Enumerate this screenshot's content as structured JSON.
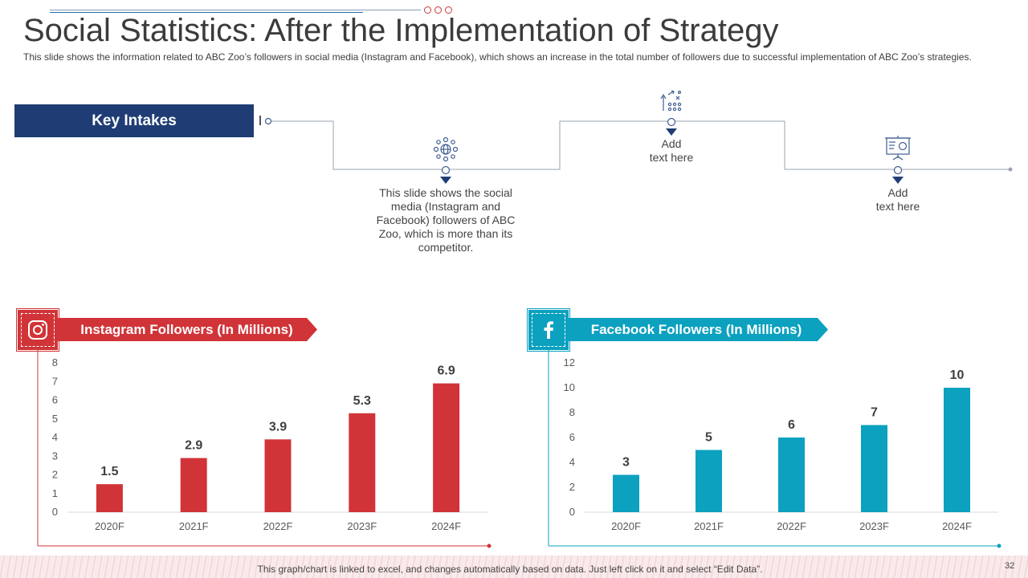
{
  "header": {
    "title": "Social Statistics: After the Implementation of Strategy",
    "subtitle": "This slide shows the information related to ABC Zoo’s followers  in social media (Instagram and Facebook), which shows an increase in the total number of followers due to successful implementation of ABC Zoo’s strategies."
  },
  "key_intakes": {
    "label": "Key Intakes",
    "point1": "This slide shows the social media (Instagram and Facebook) followers of ABC Zoo, which is more than its competitor.",
    "point2": "Add\ntext here",
    "point3": "Add\ntext here"
  },
  "instagram": {
    "banner": "Instagram Followers (In Millions)"
  },
  "facebook": {
    "banner": "Facebook Followers (In Millions)"
  },
  "colors": {
    "navy": "#1f3d74",
    "red": "#d13438",
    "teal": "#0ba1bf"
  },
  "footer": {
    "note": "This graph/chart is linked to excel, and changes automatically based on data. Just left click on it and select “Edit Data”.",
    "page": "32"
  },
  "chart_data": [
    {
      "type": "bar",
      "title": "Instagram Followers (In Millions)",
      "categories": [
        "2020F",
        "2021F",
        "2022F",
        "2023F",
        "2024F"
      ],
      "values": [
        1.5,
        2.9,
        3.9,
        5.3,
        6.9
      ],
      "value_labels": [
        "1.5",
        "2.9",
        "3.9",
        "5.3",
        "6.9"
      ],
      "ylim": [
        0,
        8
      ],
      "yticks": [
        "0",
        "1",
        "2",
        "3",
        "4",
        "5",
        "6",
        "7",
        "8"
      ],
      "color": "#d13438"
    },
    {
      "type": "bar",
      "title": "Facebook Followers (In Millions)",
      "categories": [
        "2020F",
        "2021F",
        "2022F",
        "2023F",
        "2024F"
      ],
      "values": [
        3,
        5,
        6,
        7,
        10
      ],
      "value_labels": [
        "3",
        "5",
        "6",
        "7",
        "10"
      ],
      "ylim": [
        0,
        12
      ],
      "yticks": [
        "0",
        "2",
        "4",
        "6",
        "8",
        "10",
        "12"
      ],
      "color": "#0ba1bf"
    }
  ]
}
